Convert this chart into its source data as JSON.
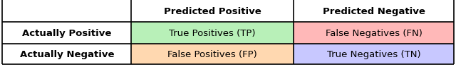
{
  "col_headers": [
    "",
    "Predicted Positive",
    "Predicted Negative"
  ],
  "row_headers": [
    "Actually Positive",
    "Actually Negative"
  ],
  "cells": [
    [
      "True Positives (TP)",
      "False Negatives (FN)"
    ],
    [
      "False Positives (FP)",
      "True Negatives (TN)"
    ]
  ],
  "cell_colors": [
    [
      "#b8f0b8",
      "#ffb8b8"
    ],
    [
      "#ffd8b0",
      "#c8c8ff"
    ]
  ],
  "header_bg": "#ffffff",
  "row_header_bg": "#ffffff",
  "border_color": "#000000",
  "text_color": "#000000",
  "header_fontsize": 9.5,
  "cell_fontsize": 9.5,
  "fig_width": 6.4,
  "fig_height": 1.13,
  "dpi": 100
}
